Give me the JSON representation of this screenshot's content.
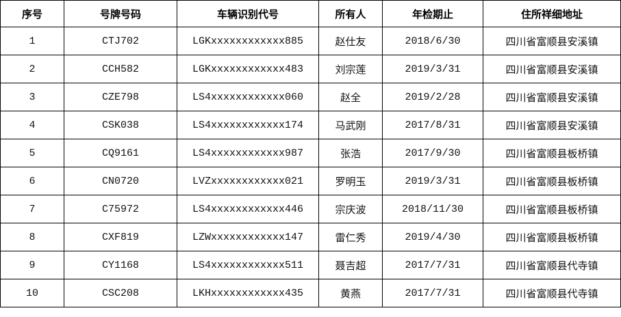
{
  "colors": {
    "border": "#000000",
    "text_primary": "#111111",
    "text_address_gray": "#808080",
    "background": "#ffffff"
  },
  "table": {
    "headers": {
      "seq": "序号",
      "plate": "号牌号码",
      "vin": "车辆识别代号",
      "owner": "所有人",
      "inspection": "年检期止",
      "address": "住所祥细地址"
    },
    "rows": [
      {
        "seq": "1",
        "plate": "CTJ702",
        "vin": "LGKxxxxxxxxxxxx885",
        "owner": "赵仕友",
        "inspection": "2018/6/30",
        "address": "四川省富顺县安溪镇"
      },
      {
        "seq": "2",
        "plate": "CCH582",
        "vin": "LGKxxxxxxxxxxxx483",
        "owner": "刘宗莲",
        "inspection": "2019/3/31",
        "address": "四川省富顺县安溪镇"
      },
      {
        "seq": "3",
        "plate": "CZE798",
        "vin": "LS4xxxxxxxxxxxx060",
        "owner": "赵全",
        "inspection": "2019/2/28",
        "address": "四川省富顺县安溪镇"
      },
      {
        "seq": "4",
        "plate": "CSK038",
        "vin": "LS4xxxxxxxxxxxx174",
        "owner": "马武刚",
        "inspection": "2017/8/31",
        "address": "四川省富顺县安溪镇"
      },
      {
        "seq": "5",
        "plate": "CQ9161",
        "vin": "LS4xxxxxxxxxxxx987",
        "owner": "张浩",
        "inspection": "2017/9/30",
        "address": "四川省富顺县板桥镇"
      },
      {
        "seq": "6",
        "plate": "CN0720",
        "vin": "LVZxxxxxxxxxxxx021",
        "owner": "罗明玉",
        "inspection": "2019/3/31",
        "address": "四川省富顺县板桥镇"
      },
      {
        "seq": "7",
        "plate": "C75972",
        "vin": "LS4xxxxxxxxxxxx446",
        "owner": "宗庆波",
        "inspection": "2018/11/30",
        "address": "四川省富顺县板桥镇"
      },
      {
        "seq": "8",
        "plate": "CXF819",
        "vin": "LZWxxxxxxxxxxxx147",
        "owner": "雷仁秀",
        "inspection": "2019/4/30",
        "address": "四川省富顺县板桥镇"
      },
      {
        "seq": "9",
        "plate": "CY1168",
        "vin": "LS4xxxxxxxxxxxx511",
        "owner": "聂吉超",
        "inspection": "2017/7/31",
        "address": "四川省富顺县代寺镇"
      },
      {
        "seq": "10",
        "plate": "CSC208",
        "vin": "LKHxxxxxxxxxxxx435",
        "owner": "黄燕",
        "inspection": "2017/7/31",
        "address": "四川省富顺县代寺镇"
      }
    ]
  }
}
